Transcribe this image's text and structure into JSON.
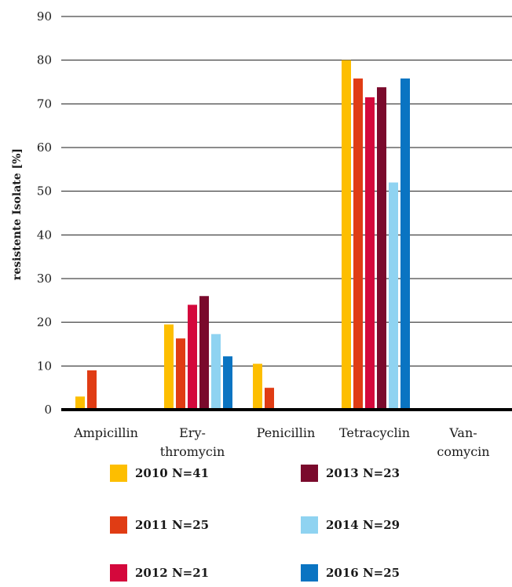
{
  "chart_data": {
    "type": "bar",
    "ylabel": "resistente Isolate [%]",
    "ylim": [
      0,
      90
    ],
    "yticks": [
      0,
      10,
      20,
      30,
      40,
      50,
      60,
      70,
      80,
      90
    ],
    "grid": true,
    "legend_position": "bottom",
    "categories": [
      {
        "lines": [
          "Ampicillin"
        ]
      },
      {
        "lines": [
          "Ery-",
          "thromycin"
        ]
      },
      {
        "lines": [
          "Penicillin"
        ]
      },
      {
        "lines": [
          "Tetracyclin"
        ]
      },
      {
        "lines": [
          "Van-",
          "comycin"
        ]
      }
    ],
    "series": [
      {
        "name": "2010 N=41",
        "color": "#FDBE00",
        "values": [
          3,
          19.5,
          10.5,
          80,
          0
        ]
      },
      {
        "name": "2011 N=25",
        "color": "#E03C14",
        "values": [
          9,
          16.3,
          5,
          75.8,
          0
        ]
      },
      {
        "name": "2012 N=21",
        "color": "#D4083C",
        "values": [
          0,
          24,
          0,
          71.5,
          0
        ]
      },
      {
        "name": "2013 N=23",
        "color": "#7A0A2C",
        "values": [
          0,
          26,
          0,
          73.8,
          0
        ]
      },
      {
        "name": "2014 N=29",
        "color": "#8FD3F1",
        "values": [
          0,
          17.3,
          0,
          52,
          0
        ]
      },
      {
        "name": "2016 N=25",
        "color": "#0A74C2",
        "values": [
          0,
          12.2,
          0,
          75.8,
          0
        ]
      }
    ]
  }
}
